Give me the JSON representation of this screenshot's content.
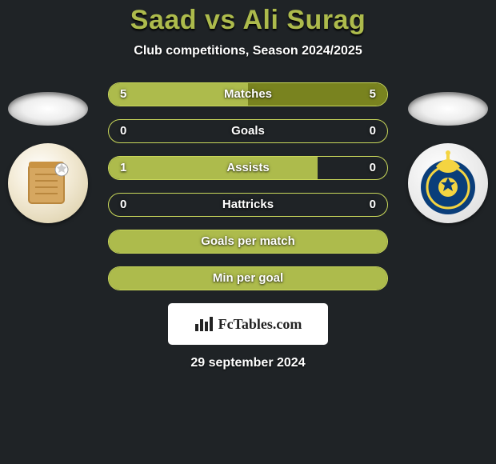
{
  "title": "Saad vs Ali Surag",
  "subtitle": "Club competitions, Season 2024/2025",
  "brand": "FcTables.com",
  "date": "29 september 2024",
  "colors": {
    "left": "#adbb4c",
    "right": "#79831f",
    "border": "#c9d85a"
  },
  "stats": [
    {
      "label": "Matches",
      "l": "5",
      "r": "5",
      "lpct": 50,
      "rpct": 50,
      "show": true
    },
    {
      "label": "Goals",
      "l": "0",
      "r": "0",
      "lpct": 0,
      "rpct": 0,
      "show": true
    },
    {
      "label": "Assists",
      "l": "1",
      "r": "0",
      "lpct": 75,
      "rpct": 0,
      "show": true
    },
    {
      "label": "Hattricks",
      "l": "0",
      "r": "0",
      "lpct": 0,
      "rpct": 0,
      "show": true
    },
    {
      "label": "Goals per match",
      "l": "",
      "r": "",
      "lpct": 100,
      "rpct": 0,
      "show": false
    },
    {
      "label": "Min per goal",
      "l": "",
      "r": "",
      "lpct": 100,
      "rpct": 0,
      "show": false
    }
  ]
}
